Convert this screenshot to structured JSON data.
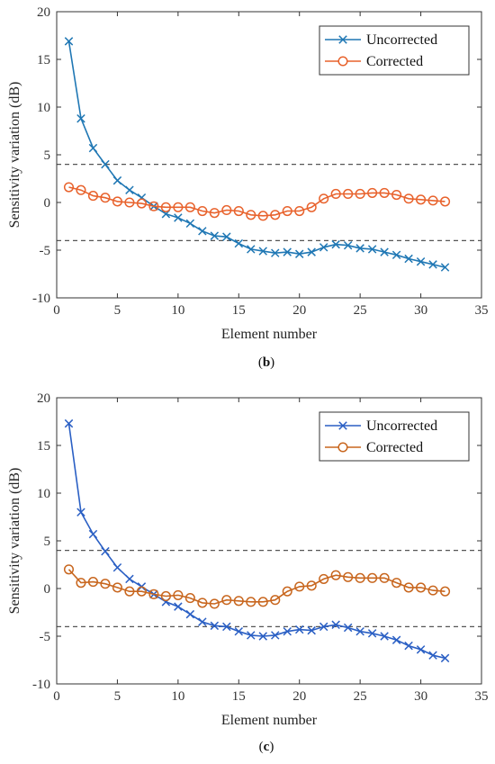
{
  "chart_data": [
    {
      "type": "line",
      "panel_label": "(b)",
      "xlabel": "Element number",
      "ylabel": "Sensitivity variation (dB)",
      "xlim": [
        0,
        35
      ],
      "ylim": [
        -10,
        20
      ],
      "xticks": [
        0,
        5,
        10,
        15,
        20,
        25,
        30,
        35
      ],
      "yticks": [
        -10,
        -5,
        0,
        5,
        10,
        15,
        20
      ],
      "grid": false,
      "legend_position": "top-right",
      "reference_lines": [
        4,
        -4
      ],
      "x": [
        1,
        2,
        3,
        4,
        5,
        6,
        7,
        8,
        9,
        10,
        11,
        12,
        13,
        14,
        15,
        16,
        17,
        18,
        19,
        20,
        21,
        22,
        23,
        24,
        25,
        26,
        27,
        28,
        29,
        30,
        31,
        32
      ],
      "series": [
        {
          "name": "Uncorrected",
          "color": "#1f77b4",
          "marker": "x",
          "values": [
            16.9,
            8.8,
            5.7,
            4.0,
            2.3,
            1.3,
            0.5,
            -0.4,
            -1.2,
            -1.6,
            -2.2,
            -3.0,
            -3.5,
            -3.6,
            -4.3,
            -4.9,
            -5.1,
            -5.3,
            -5.2,
            -5.4,
            -5.2,
            -4.7,
            -4.4,
            -4.5,
            -4.8,
            -4.9,
            -5.2,
            -5.5,
            -5.9,
            -6.2,
            -6.5,
            -6.8
          ]
        },
        {
          "name": "Corrected",
          "color": "#e8622c",
          "marker": "o",
          "values": [
            1.6,
            1.3,
            0.7,
            0.5,
            0.1,
            0.0,
            -0.1,
            -0.4,
            -0.5,
            -0.5,
            -0.5,
            -0.9,
            -1.1,
            -0.8,
            -0.9,
            -1.3,
            -1.4,
            -1.3,
            -0.9,
            -0.9,
            -0.5,
            0.4,
            0.9,
            0.9,
            0.9,
            1.0,
            1.0,
            0.8,
            0.4,
            0.3,
            0.2,
            0.1
          ]
        }
      ]
    },
    {
      "type": "line",
      "panel_label": "(c)",
      "xlabel": "Element number",
      "ylabel": "Sensitivity variation (dB)",
      "xlim": [
        0,
        35
      ],
      "ylim": [
        -10,
        20
      ],
      "xticks": [
        0,
        5,
        10,
        15,
        20,
        25,
        30,
        35
      ],
      "yticks": [
        -10,
        -5,
        0,
        5,
        10,
        15,
        20
      ],
      "grid": false,
      "legend_position": "top-right",
      "reference_lines": [
        4,
        -4
      ],
      "x": [
        1,
        2,
        3,
        4,
        5,
        6,
        7,
        8,
        9,
        10,
        11,
        12,
        13,
        14,
        15,
        16,
        17,
        18,
        19,
        20,
        21,
        22,
        23,
        24,
        25,
        26,
        27,
        28,
        29,
        30,
        31,
        32
      ],
      "series": [
        {
          "name": "Uncorrected",
          "color": "#2a5fc4",
          "marker": "x",
          "values": [
            17.3,
            8.0,
            5.7,
            3.9,
            2.2,
            1.0,
            0.2,
            -0.6,
            -1.4,
            -1.9,
            -2.7,
            -3.5,
            -3.9,
            -4.0,
            -4.5,
            -4.9,
            -5.0,
            -4.9,
            -4.5,
            -4.3,
            -4.4,
            -4.0,
            -3.8,
            -4.1,
            -4.5,
            -4.7,
            -5.0,
            -5.4,
            -6.0,
            -6.4,
            -7.0,
            -7.3
          ]
        },
        {
          "name": "Corrected",
          "color": "#c8661e",
          "marker": "o",
          "values": [
            2.0,
            0.6,
            0.7,
            0.5,
            0.1,
            -0.3,
            -0.3,
            -0.6,
            -0.8,
            -0.7,
            -1.0,
            -1.5,
            -1.6,
            -1.2,
            -1.3,
            -1.4,
            -1.4,
            -1.2,
            -0.3,
            0.2,
            0.3,
            1.0,
            1.4,
            1.2,
            1.1,
            1.1,
            1.1,
            0.6,
            0.1,
            0.1,
            -0.2,
            -0.3
          ]
        }
      ]
    }
  ]
}
